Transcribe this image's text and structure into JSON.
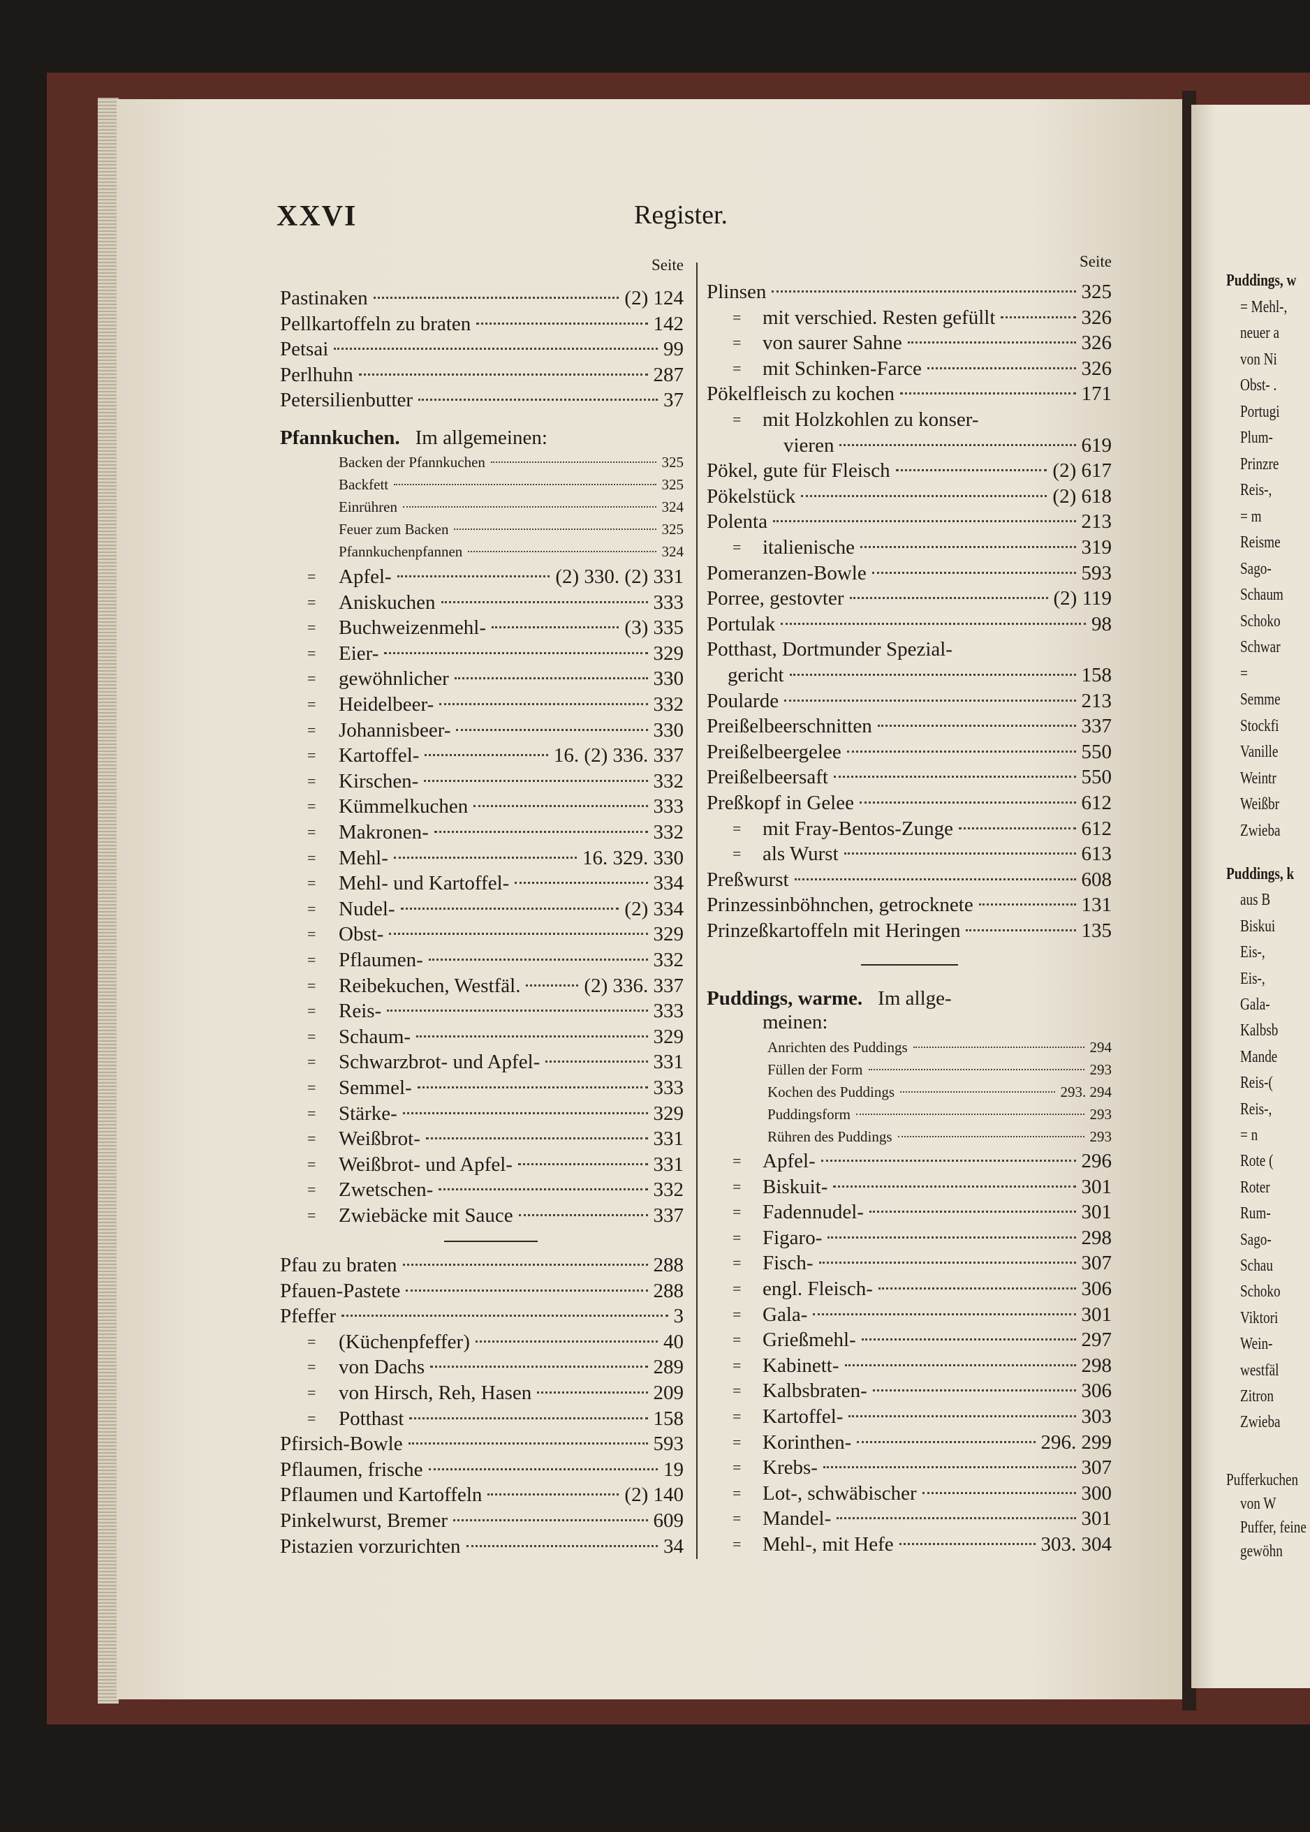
{
  "header": {
    "page_number": "XXVI",
    "title": "Register."
  },
  "left": {
    "seite": "Seite",
    "entries_1": [
      {
        "text": "Pastinaken",
        "pages": "(2) 124"
      },
      {
        "text": "Pellkartoffeln zu braten",
        "pages": "142"
      },
      {
        "text": "Petsai",
        "pages": "99"
      },
      {
        "text": "Perlhuhn",
        "pages": "287"
      },
      {
        "text": "Petersilienbutter",
        "pages": "37"
      }
    ],
    "pfannkuchen": {
      "heading": "Pfannkuchen.",
      "subheading": "Im allgemeinen:",
      "topics": [
        {
          "text": "Backen der Pfannkuchen",
          "pages": "325"
        },
        {
          "text": "Backfett",
          "pages": "325"
        },
        {
          "text": "Einrühren",
          "pages": "324"
        },
        {
          "text": "Feuer zum Backen",
          "pages": "325"
        },
        {
          "text": "Pfannkuchenpfannen",
          "pages": "324"
        }
      ],
      "entries": [
        {
          "ditto": "=",
          "text": "Apfel-",
          "pages": "(2) 330. (2) 331"
        },
        {
          "ditto": "=",
          "text": "Aniskuchen",
          "pages": "333"
        },
        {
          "ditto": "=",
          "text": "Buchweizenmehl-",
          "pages": "(3) 335"
        },
        {
          "ditto": "=",
          "text": "Eier-",
          "pages": "329"
        },
        {
          "ditto": "=",
          "text": "gewöhnlicher",
          "pages": "330"
        },
        {
          "ditto": "=",
          "text": "Heidelbeer-",
          "pages": "332"
        },
        {
          "ditto": "=",
          "text": "Johannisbeer-",
          "pages": "330"
        },
        {
          "ditto": "=",
          "text": "Kartoffel-",
          "pages": "16. (2) 336. 337"
        },
        {
          "ditto": "=",
          "text": "Kirschen-",
          "pages": "332"
        },
        {
          "ditto": "=",
          "text": "Kümmelkuchen",
          "pages": "333"
        },
        {
          "ditto": "=",
          "text": "Makronen-",
          "pages": "332"
        },
        {
          "ditto": "=",
          "text": "Mehl-",
          "pages": "16. 329. 330"
        },
        {
          "ditto": "=",
          "text": "Mehl- und Kartoffel-",
          "pages": "334"
        },
        {
          "ditto": "=",
          "text": "Nudel-",
          "pages": "(2) 334"
        },
        {
          "ditto": "=",
          "text": "Obst-",
          "pages": "329"
        },
        {
          "ditto": "=",
          "text": "Pflaumen-",
          "pages": "332"
        },
        {
          "ditto": "=",
          "text": "Reibekuchen, Westfäl.",
          "pages": "(2) 336. 337"
        },
        {
          "ditto": "=",
          "text": "Reis-",
          "pages": "333"
        },
        {
          "ditto": "=",
          "text": "Schaum-",
          "pages": "329"
        },
        {
          "ditto": "=",
          "text": "Schwarzbrot- und Apfel-",
          "pages": "331"
        },
        {
          "ditto": "=",
          "text": "Semmel-",
          "pages": "333"
        },
        {
          "ditto": "=",
          "text": "Stärke-",
          "pages": "329"
        },
        {
          "ditto": "=",
          "text": "Weißbrot-",
          "pages": "331"
        },
        {
          "ditto": "=",
          "text": "Weißbrot- und Apfel-",
          "pages": "331"
        },
        {
          "ditto": "=",
          "text": "Zwetschen-",
          "pages": "332"
        },
        {
          "ditto": "=",
          "text": "Zwiebäcke mit Sauce",
          "pages": "337"
        }
      ]
    },
    "entries_2": [
      {
        "text": "Pfau zu braten",
        "pages": "288"
      },
      {
        "text": "Pfauen-Pastete",
        "pages": "288"
      },
      {
        "text": "Pfeffer",
        "pages": "3"
      },
      {
        "ditto": "=",
        "text": "(Küchenpfeffer)",
        "pages": "40"
      },
      {
        "ditto": "=",
        "text": "von Dachs",
        "pages": "289"
      },
      {
        "ditto": "=",
        "text": "von Hirsch, Reh, Hasen",
        "pages": "209"
      },
      {
        "ditto": "=",
        "text": "Potthast",
        "pages": "158"
      },
      {
        "text": "Pfirsich-Bowle",
        "pages": "593"
      },
      {
        "text": "Pflaumen, frische",
        "pages": "19"
      },
      {
        "text": "Pflaumen und Kartoffeln",
        "pages": "(2) 140"
      },
      {
        "text": "Pinkelwurst, Bremer",
        "pages": "609"
      },
      {
        "text": "Pistazien vorzurichten",
        "pages": "34"
      }
    ]
  },
  "right": {
    "seite": "Seite",
    "entries_1": [
      {
        "text": "Plinsen",
        "pages": "325"
      },
      {
        "ditto": "=",
        "text": "mit verschied. Resten gefüllt",
        "pages": "326"
      },
      {
        "ditto": "=",
        "text": "von saurer Sahne",
        "pages": "326"
      },
      {
        "ditto": "=",
        "text": "mit Schinken-Farce",
        "pages": "326"
      },
      {
        "text": "Pökelfleisch zu kochen",
        "pages": "171"
      },
      {
        "ditto": "=",
        "text": "mit Holzkohlen zu konser-",
        "cont": "vieren",
        "pages": "619"
      },
      {
        "text": "Pökel, gute für Fleisch",
        "pages": "(2) 617"
      },
      {
        "text": "Pökelstück",
        "pages": "(2) 618"
      },
      {
        "text": "Polenta",
        "pages": "213"
      },
      {
        "ditto": "=",
        "text": "italienische",
        "pages": "319"
      },
      {
        "text": "Pomeranzen-Bowle",
        "pages": "593"
      },
      {
        "text": "Porree, gestovter",
        "pages": "(2) 119"
      },
      {
        "text": "Portulak",
        "pages": "98"
      },
      {
        "text": "Potthast, Dortmunder Spezial-",
        "cont": "gericht",
        "pages": "158"
      },
      {
        "text": "Poularde",
        "pages": "213"
      },
      {
        "text": "Preißelbeerschnitten",
        "pages": "337"
      },
      {
        "text": "Preißelbeergelee",
        "pages": "550"
      },
      {
        "text": "Preißelbeersaft",
        "pages": "550"
      },
      {
        "text": "Preßkopf in Gelee",
        "pages": "612"
      },
      {
        "ditto": "=",
        "text": "mit Fray-Bentos-Zunge",
        "pages": "612"
      },
      {
        "ditto": "=",
        "text": "als Wurst",
        "pages": "613"
      },
      {
        "text": "Preßwurst",
        "pages": "608"
      },
      {
        "text": "Prinzessinböhnchen, getrocknete",
        "pages": "131"
      },
      {
        "text": "Prinzeßkartoffeln mit Heringen",
        "pages": "135"
      }
    ],
    "puddings": {
      "heading": "Puddings, warme.",
      "subheading": "Im allge-",
      "subheading_cont": "meinen:",
      "topics": [
        {
          "text": "Anrichten des Puddings",
          "pages": "294"
        },
        {
          "text": "Füllen der Form",
          "pages": "293"
        },
        {
          "text": "Kochen des Puddings",
          "pages": "293. 294"
        },
        {
          "text": "Puddingsform",
          "pages": "293"
        },
        {
          "text": "Rühren des Puddings",
          "pages": "293"
        }
      ],
      "entries": [
        {
          "ditto": "=",
          "text": "Apfel-",
          "pages": "296"
        },
        {
          "ditto": "=",
          "text": "Biskuit-",
          "pages": "301"
        },
        {
          "ditto": "=",
          "text": "Fadennudel-",
          "pages": "301"
        },
        {
          "ditto": "=",
          "text": "Figaro-",
          "pages": "298"
        },
        {
          "ditto": "=",
          "text": "Fisch-",
          "pages": "307"
        },
        {
          "ditto": "=",
          "text": "engl. Fleisch-",
          "pages": "306"
        },
        {
          "ditto": "=",
          "text": "Gala-",
          "pages": "301"
        },
        {
          "ditto": "=",
          "text": "Grießmehl-",
          "pages": "297"
        },
        {
          "ditto": "=",
          "text": "Kabinett-",
          "pages": "298"
        },
        {
          "ditto": "=",
          "text": "Kalbsbraten-",
          "pages": "306"
        },
        {
          "ditto": "=",
          "text": "Kartoffel-",
          "pages": "303"
        },
        {
          "ditto": "=",
          "text": "Korinthen-",
          "pages": "296. 299"
        },
        {
          "ditto": "=",
          "text": "Krebs-",
          "pages": "307"
        },
        {
          "ditto": "=",
          "text": "Lot-, schwäbischer",
          "pages": "300"
        },
        {
          "ditto": "=",
          "text": "Mandel-",
          "pages": "301"
        },
        {
          "ditto": "=",
          "text": "Mehl-, mit Hefe",
          "pages": "303. 304"
        }
      ]
    }
  },
  "next_page": {
    "group_1": {
      "heading": "Puddings, w",
      "lines": [
        "= Mehl-,",
        "neuer a",
        "von Ni",
        "Obst- .",
        "Portugi",
        "Plum-",
        "Prinzre",
        "Reis-,",
        "= m",
        "Reisme",
        "Sago-",
        "Schaum",
        "Schoko",
        "Schwar",
        "=",
        "Semme",
        "Stockfi",
        "Vanille",
        "Weintr",
        "Weißbr",
        "Zwieba"
      ]
    },
    "group_2": {
      "heading": "Puddings, k",
      "lines": [
        "aus B",
        "Biskui",
        "Eis-,",
        "Eis-,",
        "Gala-",
        "Kalbsb",
        "Mande",
        "Reis-(",
        "Reis-,",
        "= n",
        "Rote (",
        "Roter",
        "Rum-",
        "Sago-",
        "Schau",
        "Schoko",
        "Viktori",
        "Wein-",
        "westfäl",
        "Zitron",
        "Zwieba"
      ]
    },
    "group_3": {
      "heading": "Pufferkuchen",
      "lines": [
        "von W",
        "Puffer, feine",
        "gewöhn"
      ]
    }
  }
}
